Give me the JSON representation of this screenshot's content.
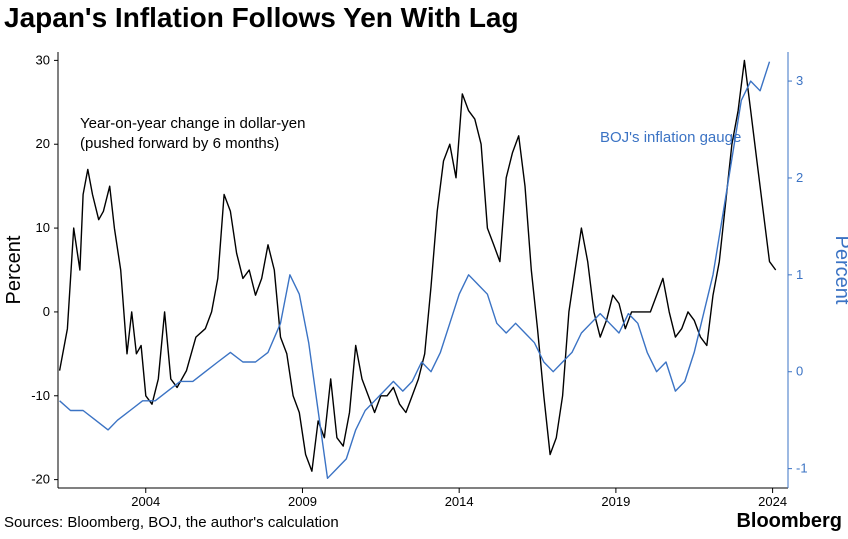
{
  "title": "Japan's Inflation Follows Yen With Lag",
  "source": "Sources: Bloomberg, BOJ, the author's calculation",
  "brand": "Bloomberg",
  "colors": {
    "yen_line": "#000000",
    "boj_line": "#3b73c4",
    "axis": "#000000"
  },
  "chart_data": {
    "type": "line",
    "title": "Japan's Inflation Follows Yen With Lag",
    "xlabel": "",
    "ylabel_left": "Percent",
    "ylabel_right": "Percent",
    "xlim": [
      2001.2,
      2024.3
    ],
    "ylim_left": [
      -21,
      31
    ],
    "ylim_right": [
      -1.2,
      3.3
    ],
    "x_ticks": [
      2004,
      2009,
      2014,
      2019,
      2024
    ],
    "y_ticks_left": [
      -20,
      -10,
      0,
      10,
      20,
      30
    ],
    "y_ticks_right": [
      -1,
      0,
      1,
      2,
      3
    ],
    "grid": false,
    "series": [
      {
        "name": "Year-on-year change in dollar-yen\n(pushed forward by 6 months)",
        "axis": "left",
        "color": "#000000",
        "x": [
          2001.25,
          2001.5,
          2001.7,
          2001.9,
          2002.0,
          2002.15,
          2002.3,
          2002.5,
          2002.65,
          2002.85,
          2003.0,
          2003.2,
          2003.4,
          2003.55,
          2003.7,
          2003.85,
          2004.0,
          2004.2,
          2004.4,
          2004.6,
          2004.8,
          2005.0,
          2005.3,
          2005.6,
          2005.9,
          2006.1,
          2006.3,
          2006.5,
          2006.7,
          2006.9,
          2007.1,
          2007.3,
          2007.5,
          2007.7,
          2007.9,
          2008.1,
          2008.3,
          2008.5,
          2008.7,
          2008.9,
          2009.1,
          2009.3,
          2009.5,
          2009.7,
          2009.9,
          2010.1,
          2010.3,
          2010.5,
          2010.7,
          2010.9,
          2011.1,
          2011.3,
          2011.5,
          2011.7,
          2011.9,
          2012.1,
          2012.3,
          2012.5,
          2012.7,
          2012.9,
          2013.1,
          2013.3,
          2013.5,
          2013.7,
          2013.9,
          2014.1,
          2014.3,
          2014.5,
          2014.7,
          2014.9,
          2015.1,
          2015.3,
          2015.5,
          2015.7,
          2015.9,
          2016.1,
          2016.3,
          2016.5,
          2016.7,
          2016.9,
          2017.1,
          2017.3,
          2017.5,
          2017.7,
          2017.9,
          2018.1,
          2018.3,
          2018.5,
          2018.7,
          2018.9,
          2019.1,
          2019.3,
          2019.5,
          2019.7,
          2019.9,
          2020.1,
          2020.3,
          2020.5,
          2020.7,
          2020.9,
          2021.1,
          2021.3,
          2021.5,
          2021.7,
          2021.9,
          2022.1,
          2022.3,
          2022.5,
          2022.7,
          2022.9,
          2023.1,
          2023.3,
          2023.5,
          2023.7,
          2023.9,
          2024.1
        ],
        "values": [
          -7,
          -2,
          10,
          5,
          14,
          17,
          14,
          11,
          12,
          15,
          10,
          5,
          -5,
          0,
          -5,
          -4,
          -10,
          -11,
          -8,
          0,
          -8,
          -9,
          -7,
          -3,
          -2,
          0,
          4,
          14,
          12,
          7,
          4,
          5,
          2,
          4,
          8,
          5,
          -3,
          -5,
          -10,
          -12,
          -17,
          -19,
          -13,
          -15,
          -8,
          -15,
          -16,
          -12,
          -4,
          -8,
          -10,
          -12,
          -10,
          -10,
          -9,
          -11,
          -12,
          -10,
          -8,
          -5,
          3,
          12,
          18,
          20,
          16,
          26,
          24,
          23,
          20,
          10,
          8,
          6,
          16,
          19,
          21,
          15,
          5,
          -2,
          -10,
          -17,
          -15,
          -10,
          0,
          5,
          10,
          6,
          0,
          -3,
          -1,
          2,
          1,
          -2,
          0,
          0,
          0,
          0,
          2,
          4,
          0,
          -3,
          -2,
          0,
          -1,
          -3,
          -4,
          2,
          6,
          13,
          20,
          24,
          30,
          24,
          18,
          12,
          6,
          5
        ]
      },
      {
        "name": "BOJ's inflation gauge",
        "axis": "right",
        "color": "#3b73c4",
        "x": [
          2001.25,
          2001.6,
          2002.0,
          2002.4,
          2002.8,
          2003.1,
          2003.5,
          2003.9,
          2004.3,
          2004.7,
          2005.1,
          2005.5,
          2005.9,
          2006.3,
          2006.7,
          2007.1,
          2007.5,
          2007.9,
          2008.3,
          2008.6,
          2008.9,
          2009.2,
          2009.5,
          2009.8,
          2010.1,
          2010.4,
          2010.7,
          2011.0,
          2011.3,
          2011.6,
          2011.9,
          2012.2,
          2012.5,
          2012.8,
          2013.1,
          2013.4,
          2013.7,
          2014.0,
          2014.3,
          2014.6,
          2014.9,
          2015.2,
          2015.5,
          2015.8,
          2016.1,
          2016.4,
          2016.7,
          2017.0,
          2017.3,
          2017.6,
          2017.9,
          2018.2,
          2018.5,
          2018.8,
          2019.1,
          2019.4,
          2019.7,
          2020.0,
          2020.3,
          2020.6,
          2020.9,
          2021.2,
          2021.5,
          2021.8,
          2022.1,
          2022.4,
          2022.7,
          2023.0,
          2023.3,
          2023.6,
          2023.9
        ],
        "values": [
          -0.3,
          -0.4,
          -0.4,
          -0.5,
          -0.6,
          -0.5,
          -0.4,
          -0.3,
          -0.3,
          -0.2,
          -0.1,
          -0.1,
          0.0,
          0.1,
          0.2,
          0.1,
          0.1,
          0.2,
          0.5,
          1.0,
          0.8,
          0.3,
          -0.4,
          -1.1,
          -1.0,
          -0.9,
          -0.6,
          -0.4,
          -0.3,
          -0.2,
          -0.1,
          -0.2,
          -0.1,
          0.1,
          0.0,
          0.2,
          0.5,
          0.8,
          1.0,
          0.9,
          0.8,
          0.5,
          0.4,
          0.5,
          0.4,
          0.3,
          0.1,
          0.0,
          0.1,
          0.2,
          0.4,
          0.5,
          0.6,
          0.5,
          0.4,
          0.6,
          0.5,
          0.2,
          0.0,
          0.1,
          -0.2,
          -0.1,
          0.2,
          0.6,
          1.0,
          1.6,
          2.2,
          2.8,
          3.0,
          2.9,
          3.2
        ]
      }
    ],
    "annotations": [
      {
        "text_lines": [
          "Year-on-year change in dollar-yen",
          "(pushed forward by 6 months)"
        ],
        "color": "#000000"
      },
      {
        "text_lines": [
          "BOJ's inflation gauge"
        ],
        "color": "#3b73c4"
      }
    ]
  }
}
